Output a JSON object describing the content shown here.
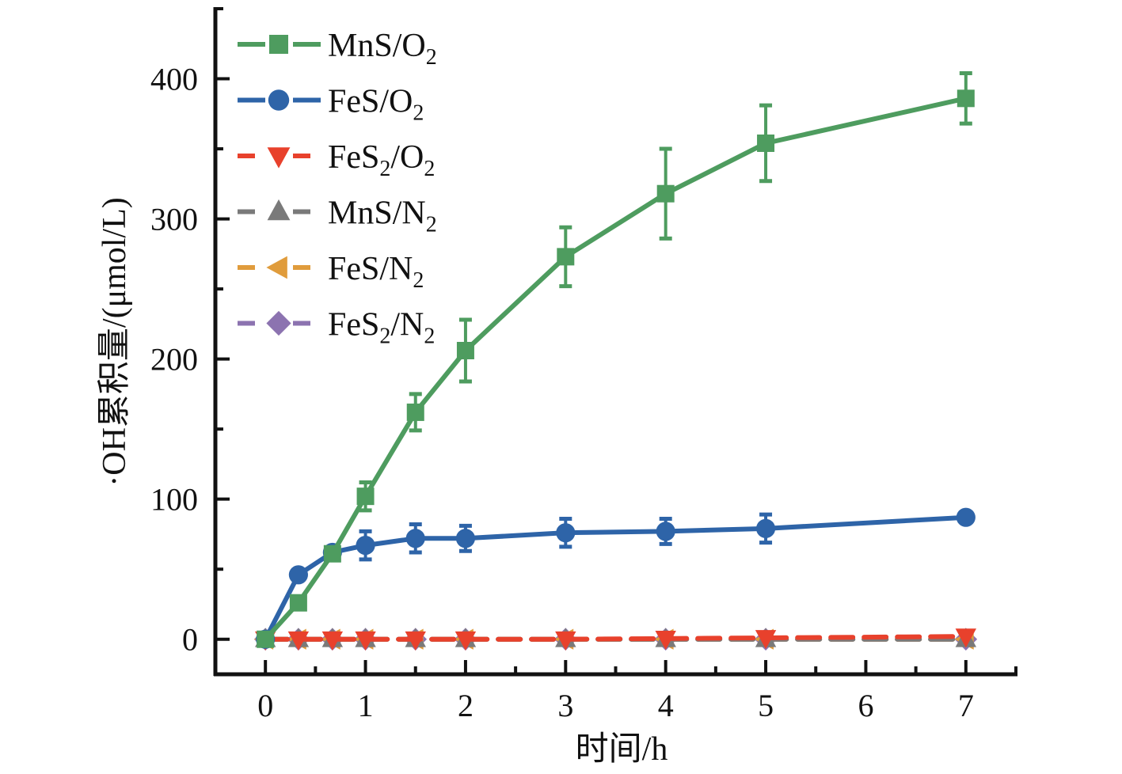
{
  "chart_data": {
    "type": "line",
    "title": "",
    "xlabel": "时间/h",
    "ylabel": "·OH累积量/(μmol/L)",
    "xlim": [
      -0.5,
      7.5
    ],
    "ylim": [
      -25,
      450
    ],
    "xticks": [
      0,
      1,
      2,
      3,
      4,
      5,
      6,
      7
    ],
    "xtick_labels": [
      "0",
      "1",
      "2",
      "3",
      "4",
      "5",
      "6",
      "7"
    ],
    "xminor_step": 0.5,
    "yticks": [
      0,
      100,
      200,
      300,
      400
    ],
    "ytick_labels": [
      "0",
      "100",
      "200",
      "300",
      "400"
    ],
    "yminor_step": 50,
    "grid": false,
    "legend_position": "top-left",
    "x": [
      0,
      0.33,
      0.67,
      1,
      1.5,
      2,
      3,
      4,
      5,
      7
    ],
    "series": [
      {
        "name": "MnS/O2",
        "label_main": "MnS/O",
        "label_sub": "2",
        "label_parts": [
          {
            "t": "MnS/O",
            "sub": false
          },
          {
            "t": "2",
            "sub": true
          }
        ],
        "color": "#4e9c5f",
        "marker": "square",
        "line": "solid",
        "values": [
          0,
          26,
          61,
          102,
          162,
          206,
          273,
          318,
          354,
          386
        ],
        "errors": [
          0,
          0,
          0,
          10,
          13,
          22,
          21,
          32,
          27,
          18
        ]
      },
      {
        "name": "FeS/O2",
        "label_parts": [
          {
            "t": "FeS/O",
            "sub": false
          },
          {
            "t": "2",
            "sub": true
          }
        ],
        "color": "#2e64a8",
        "marker": "circle",
        "line": "solid",
        "values": [
          0,
          46,
          62,
          67,
          72,
          72,
          76,
          77,
          79,
          87
        ],
        "errors": [
          0,
          0,
          0,
          10,
          10,
          9,
          10,
          9,
          10,
          0
        ]
      },
      {
        "name": "FeS2/O2",
        "label_parts": [
          {
            "t": "FeS",
            "sub": false
          },
          {
            "t": "2",
            "sub": true
          },
          {
            "t": "/O",
            "sub": false
          },
          {
            "t": "2",
            "sub": true
          }
        ],
        "color": "#e8412c",
        "marker": "triangle-down",
        "line": "dashed",
        "values": [
          0,
          0,
          0,
          0,
          0,
          0,
          0,
          0.5,
          1,
          2
        ],
        "errors": [
          0,
          0,
          0,
          0,
          0,
          0,
          0,
          0,
          0,
          0
        ]
      },
      {
        "name": "MnS/N2",
        "label_parts": [
          {
            "t": "MnS/N",
            "sub": false
          },
          {
            "t": "2",
            "sub": true
          }
        ],
        "color": "#7a7a7a",
        "marker": "triangle-up",
        "line": "dashed",
        "values": [
          0,
          0,
          0,
          0,
          0,
          0,
          0,
          0,
          0,
          0
        ],
        "errors": [
          0,
          0,
          0,
          0,
          0,
          0,
          0,
          0,
          0,
          0
        ]
      },
      {
        "name": "FeS/N2",
        "label_parts": [
          {
            "t": "FeS/N",
            "sub": false
          },
          {
            "t": "2",
            "sub": true
          }
        ],
        "color": "#e09c3c",
        "marker": "triangle-left",
        "line": "dashed",
        "values": [
          0,
          0,
          0,
          0,
          0,
          0,
          0,
          0,
          0,
          0
        ],
        "errors": [
          0,
          0,
          0,
          0,
          0,
          0,
          0,
          0,
          0,
          0
        ]
      },
      {
        "name": "FeS2/N2",
        "label_parts": [
          {
            "t": "FeS",
            "sub": false
          },
          {
            "t": "2",
            "sub": true
          },
          {
            "t": "/N",
            "sub": false
          },
          {
            "t": "2",
            "sub": true
          }
        ],
        "color": "#8c73b0",
        "marker": "diamond",
        "line": "dashed",
        "values": [
          0,
          0,
          0,
          0,
          0,
          0,
          0,
          0,
          0,
          0
        ],
        "errors": [
          0,
          0,
          0,
          0,
          0,
          0,
          0,
          0,
          0,
          0
        ]
      }
    ]
  }
}
